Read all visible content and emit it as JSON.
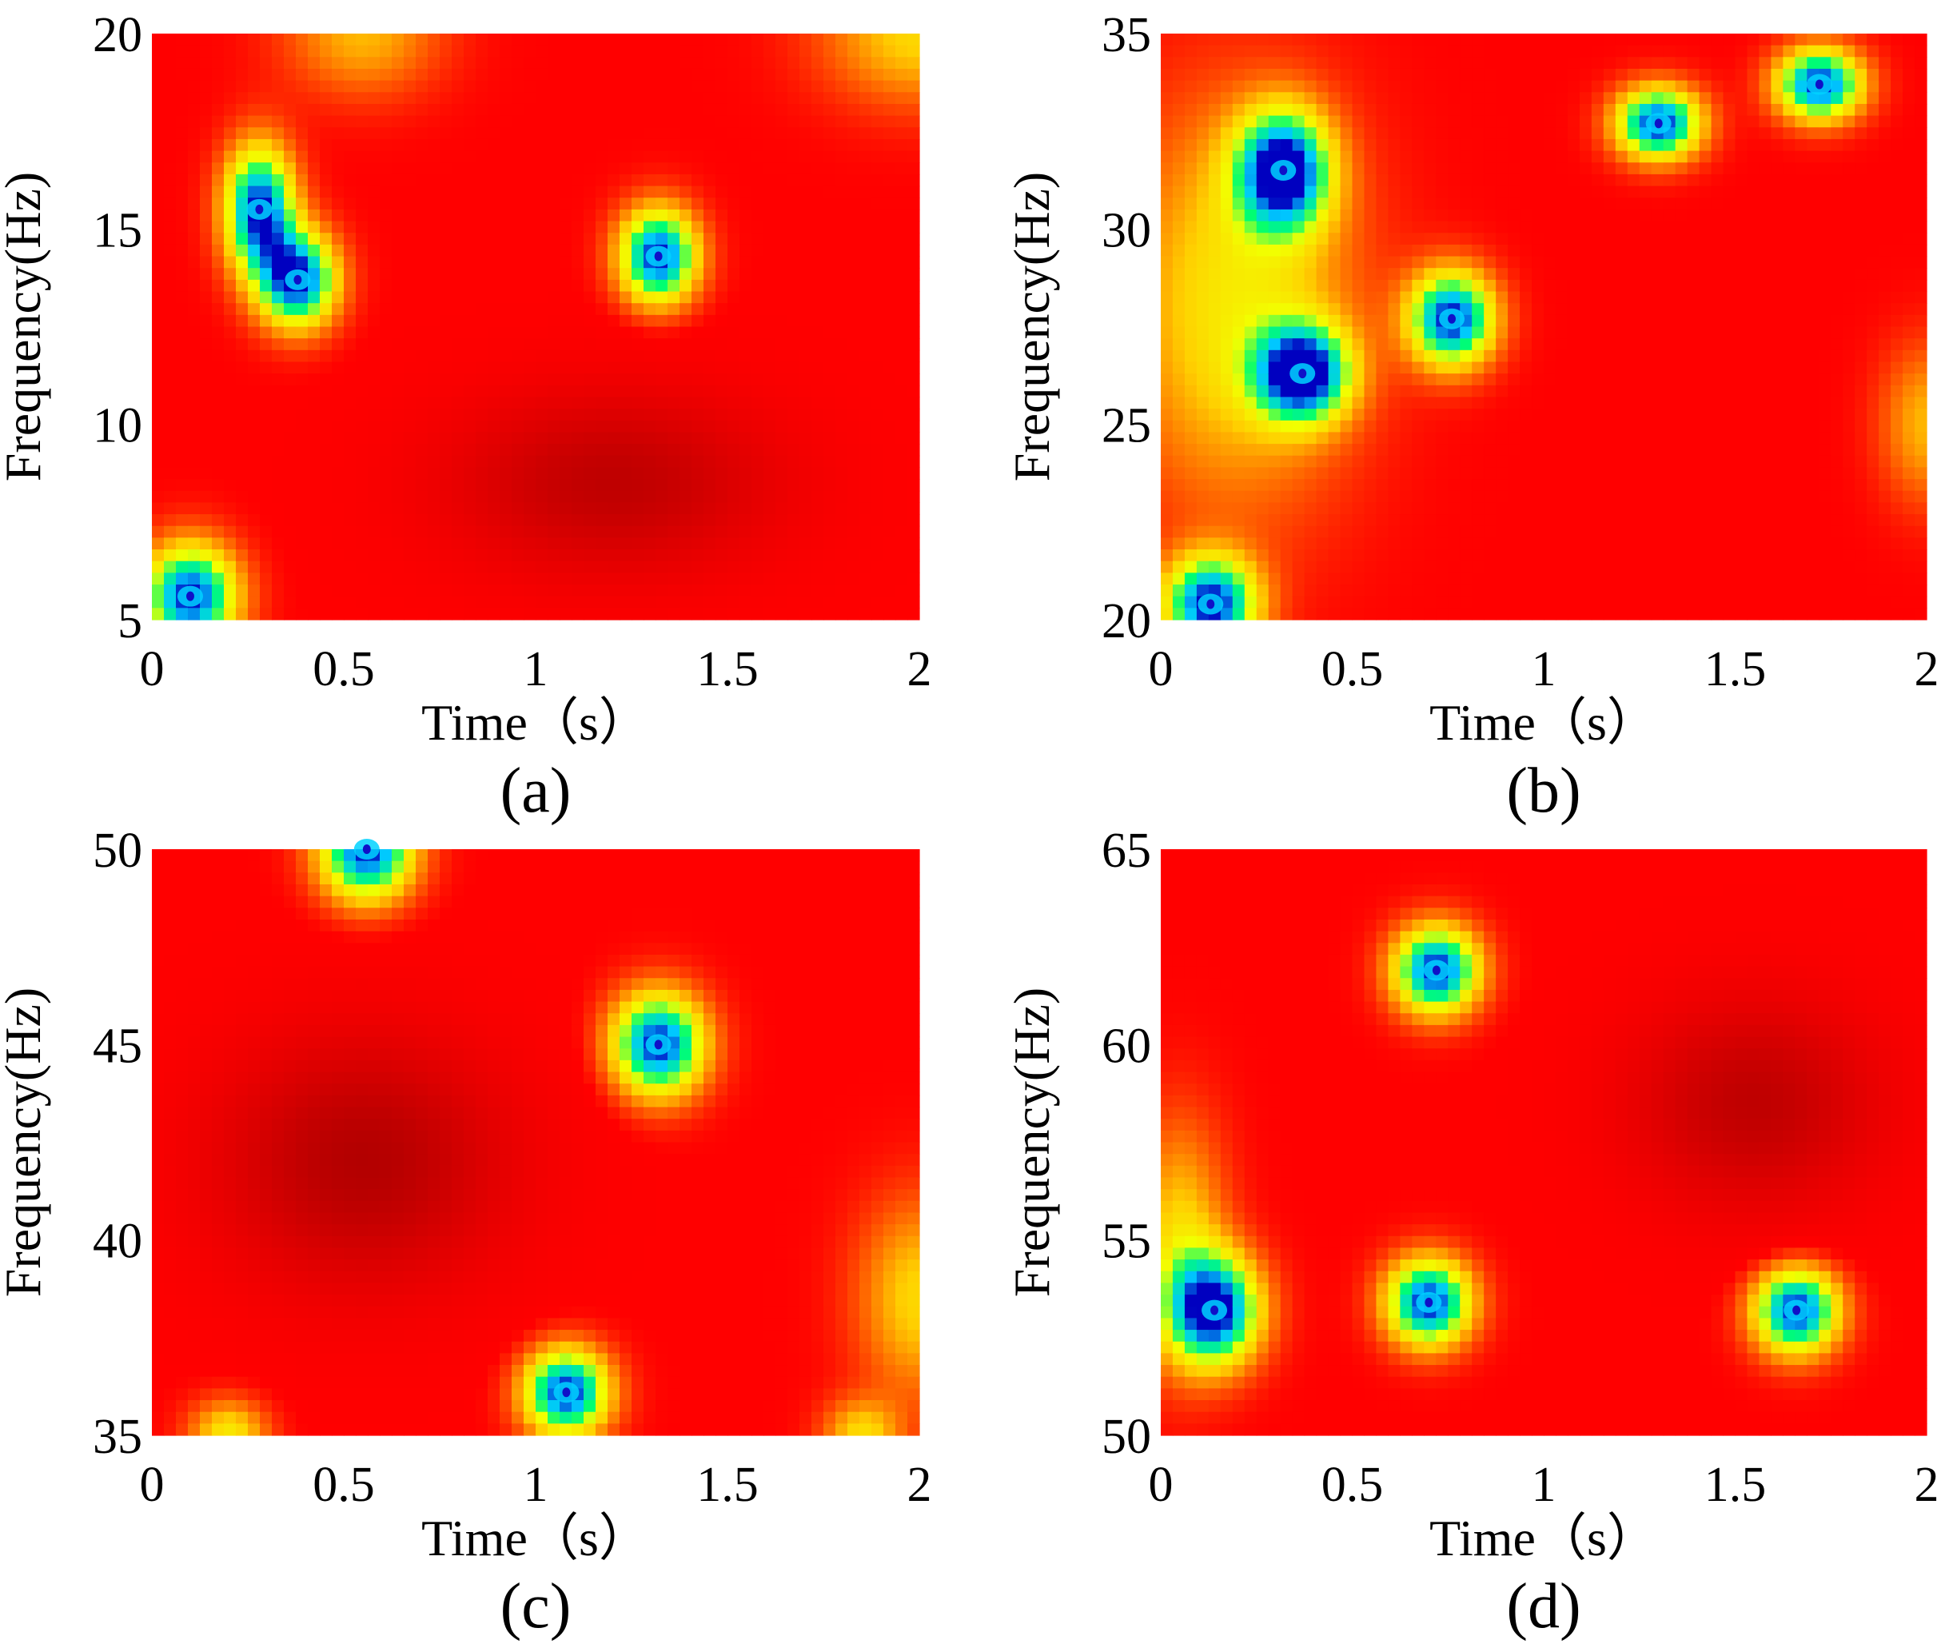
{
  "figure": {
    "colormap": [
      "#a00000",
      "#ff0000",
      "#ff6a00",
      "#ffd000",
      "#f2ff00",
      "#00ff70",
      "#00c8ff",
      "#0000c0"
    ],
    "panels": [
      {
        "panel_label": "(a)",
        "chart_data": {
          "type": "heatmap",
          "xlabel": "Time（s）",
          "ylabel": "Frequency(Hz)",
          "xlim": [
            0,
            2
          ],
          "ylim": [
            5,
            20
          ],
          "xticks": [
            "0",
            "0.5",
            "1",
            "1.5",
            "2"
          ],
          "yticks": [
            "5",
            "10",
            "15",
            "20"
          ],
          "background_level": 0.22,
          "features": [
            {
              "t": 0.28,
              "f": 15.5,
              "level": 1.0,
              "spread_t": 0.09,
              "spread_f": 1.6
            },
            {
              "t": 0.38,
              "f": 13.7,
              "level": 1.0,
              "spread_t": 0.1,
              "spread_f": 1.2
            },
            {
              "t": 1.32,
              "f": 14.3,
              "level": 1.0,
              "spread_t": 0.1,
              "spread_f": 1.2
            },
            {
              "t": 0.1,
              "f": 5.6,
              "level": 1.0,
              "spread_t": 0.12,
              "spread_f": 1.3
            },
            {
              "t": 0.55,
              "f": 20,
              "level": 0.45,
              "spread_t": 0.2,
              "spread_f": 1.6
            },
            {
              "t": 2.0,
              "f": 20,
              "level": 0.5,
              "spread_t": 0.25,
              "spread_f": 1.8
            },
            {
              "t": 1.2,
              "f": 8.5,
              "level": -0.6,
              "spread_t": 0.4,
              "spread_f": 2.2
            }
          ]
        }
      },
      {
        "panel_label": "(b)",
        "chart_data": {
          "type": "heatmap",
          "xlabel": "Time（s）",
          "ylabel": "Frequency(Hz)",
          "xlim": [
            0,
            2
          ],
          "ylim": [
            20,
            35
          ],
          "xticks": [
            "0",
            "0.5",
            "1",
            "1.5",
            "2"
          ],
          "yticks": [
            "20",
            "25",
            "30",
            "35"
          ],
          "background_level": 0.22,
          "features": [
            {
              "t": 0.32,
              "f": 31.5,
              "level": 1.0,
              "spread_t": 0.12,
              "spread_f": 1.5
            },
            {
              "t": 0.37,
              "f": 26.3,
              "level": 1.0,
              "spread_t": 0.12,
              "spread_f": 1.2
            },
            {
              "t": 0.76,
              "f": 27.7,
              "level": 1.0,
              "spread_t": 0.11,
              "spread_f": 1.2
            },
            {
              "t": 1.3,
              "f": 32.7,
              "level": 1.0,
              "spread_t": 0.11,
              "spread_f": 0.9
            },
            {
              "t": 1.72,
              "f": 33.7,
              "level": 1.0,
              "spread_t": 0.11,
              "spread_f": 0.9
            },
            {
              "t": 0.13,
              "f": 20.4,
              "level": 1.0,
              "spread_t": 0.12,
              "spread_f": 1.2
            },
            {
              "t": 0.2,
              "f": 28.0,
              "level": 0.55,
              "spread_t": 0.3,
              "spread_f": 5.0
            },
            {
              "t": 2.0,
              "f": 25.0,
              "level": 0.45,
              "spread_t": 0.12,
              "spread_f": 2.0
            }
          ]
        }
      },
      {
        "panel_label": "(c)",
        "chart_data": {
          "type": "heatmap",
          "xlabel": "Time（s）",
          "ylabel": "Frequency(Hz)",
          "xlim": [
            0,
            2
          ],
          "ylim": [
            35,
            50
          ],
          "xticks": [
            "0",
            "0.5",
            "1",
            "1.5",
            "2"
          ],
          "yticks": [
            "35",
            "40",
            "45",
            "50"
          ],
          "background_level": 0.22,
          "features": [
            {
              "t": 0.56,
              "f": 50,
              "level": 1.0,
              "spread_t": 0.12,
              "spread_f": 1.3
            },
            {
              "t": 1.32,
              "f": 45,
              "level": 1.0,
              "spread_t": 0.12,
              "spread_f": 1.3
            },
            {
              "t": 1.08,
              "f": 36.1,
              "level": 1.0,
              "spread_t": 0.11,
              "spread_f": 1.1
            },
            {
              "t": 0.2,
              "f": 35,
              "level": 0.55,
              "spread_t": 0.1,
              "spread_f": 0.9
            },
            {
              "t": 1.85,
              "f": 35,
              "level": 0.5,
              "spread_t": 0.1,
              "spread_f": 0.9
            },
            {
              "t": 2.0,
              "f": 38.5,
              "level": 0.5,
              "spread_t": 0.16,
              "spread_f": 2.5
            },
            {
              "t": 0.55,
              "f": 42,
              "level": -0.75,
              "spread_t": 0.35,
              "spread_f": 3.0
            }
          ]
        }
      },
      {
        "panel_label": "(d)",
        "chart_data": {
          "type": "heatmap",
          "xlabel": "Time（s）",
          "ylabel": "Frequency(Hz)",
          "xlim": [
            0,
            2
          ],
          "ylim": [
            50,
            65
          ],
          "xticks": [
            "0",
            "0.5",
            "1",
            "1.5",
            "2"
          ],
          "yticks": [
            "50",
            "55",
            "60",
            "65"
          ],
          "background_level": 0.22,
          "features": [
            {
              "t": 0.72,
              "f": 61.9,
              "level": 1.0,
              "spread_t": 0.11,
              "spread_f": 1.1
            },
            {
              "t": 0.7,
              "f": 53.4,
              "level": 1.0,
              "spread_t": 0.11,
              "spread_f": 1.1
            },
            {
              "t": 0.14,
              "f": 53.2,
              "level": 1.0,
              "spread_t": 0.12,
              "spread_f": 1.4
            },
            {
              "t": 1.66,
              "f": 53.2,
              "level": 1.0,
              "spread_t": 0.11,
              "spread_f": 1.1
            },
            {
              "t": 0.05,
              "f": 55.0,
              "level": 0.5,
              "spread_t": 0.12,
              "spread_f": 3.0
            },
            {
              "t": 1.55,
              "f": 58.5,
              "level": -0.6,
              "spread_t": 0.3,
              "spread_f": 2.5
            }
          ]
        }
      }
    ]
  }
}
